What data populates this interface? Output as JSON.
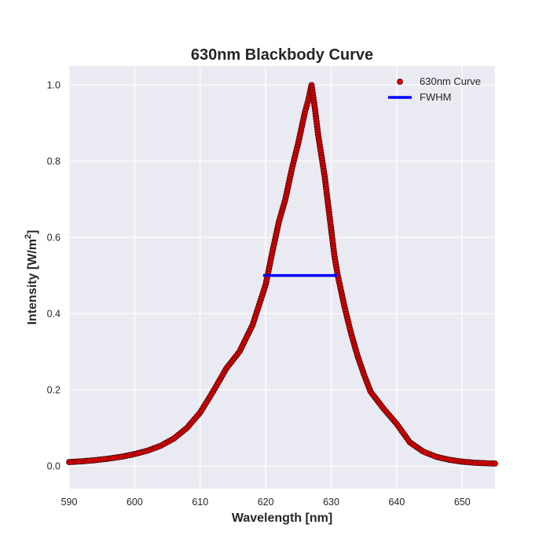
{
  "chart_data": {
    "type": "scatter",
    "title": "630nm Blackbody Curve",
    "xlabel": "Wavelength [nm]",
    "ylabel_main": "Intensity [W/m",
    "ylabel_sup": "2",
    "ylabel_close": "]",
    "xlim": [
      590,
      655
    ],
    "ylim": [
      -0.06,
      1.05
    ],
    "xticks": [
      590,
      600,
      610,
      620,
      630,
      640,
      650
    ],
    "xtick_labels": [
      "590",
      "600",
      "610",
      "620",
      "630",
      "640",
      "650"
    ],
    "yticks": [
      0.0,
      0.2,
      0.4,
      0.6,
      0.8,
      1.0
    ],
    "ytick_labels": [
      "0.0",
      "0.2",
      "0.4",
      "0.6",
      "0.8",
      "1.0"
    ],
    "grid": true,
    "legend_position": "top-right",
    "series": [
      {
        "name": "630nm Curve",
        "kind": "scatter",
        "color": "#e00000",
        "edge_color": "#1a0000",
        "points": [
          [
            590.0,
            0.01
          ],
          [
            592.0,
            0.012
          ],
          [
            594.0,
            0.015
          ],
          [
            596.0,
            0.019
          ],
          [
            598.0,
            0.024
          ],
          [
            600.0,
            0.031
          ],
          [
            602.0,
            0.04
          ],
          [
            604.0,
            0.053
          ],
          [
            606.0,
            0.072
          ],
          [
            608.0,
            0.1
          ],
          [
            610.0,
            0.14
          ],
          [
            612.0,
            0.196
          ],
          [
            614.0,
            0.256
          ],
          [
            616.0,
            0.3
          ],
          [
            618.0,
            0.37
          ],
          [
            620.0,
            0.476
          ],
          [
            621.0,
            0.56
          ],
          [
            622.0,
            0.64
          ],
          [
            623.0,
            0.7
          ],
          [
            624.0,
            0.78
          ],
          [
            625.0,
            0.85
          ],
          [
            626.0,
            0.93
          ],
          [
            626.5,
            0.96
          ],
          [
            627.0,
            1.0
          ],
          [
            627.5,
            0.94
          ],
          [
            628.0,
            0.87
          ],
          [
            629.0,
            0.76
          ],
          [
            630.0,
            0.62
          ],
          [
            630.5,
            0.55
          ],
          [
            631.0,
            0.5
          ],
          [
            632.0,
            0.42
          ],
          [
            633.0,
            0.35
          ],
          [
            634.0,
            0.29
          ],
          [
            635.0,
            0.24
          ],
          [
            636.0,
            0.195
          ],
          [
            638.0,
            0.15
          ],
          [
            640.0,
            0.11
          ],
          [
            642.0,
            0.062
          ],
          [
            644.0,
            0.038
          ],
          [
            646.0,
            0.024
          ],
          [
            648.0,
            0.016
          ],
          [
            650.0,
            0.011
          ],
          [
            652.0,
            0.008
          ],
          [
            655.0,
            0.006
          ]
        ]
      },
      {
        "name": "FWHM",
        "kind": "line",
        "color": "#0000ff",
        "points": [
          [
            619.6,
            0.5
          ],
          [
            630.9,
            0.5
          ]
        ]
      }
    ]
  }
}
